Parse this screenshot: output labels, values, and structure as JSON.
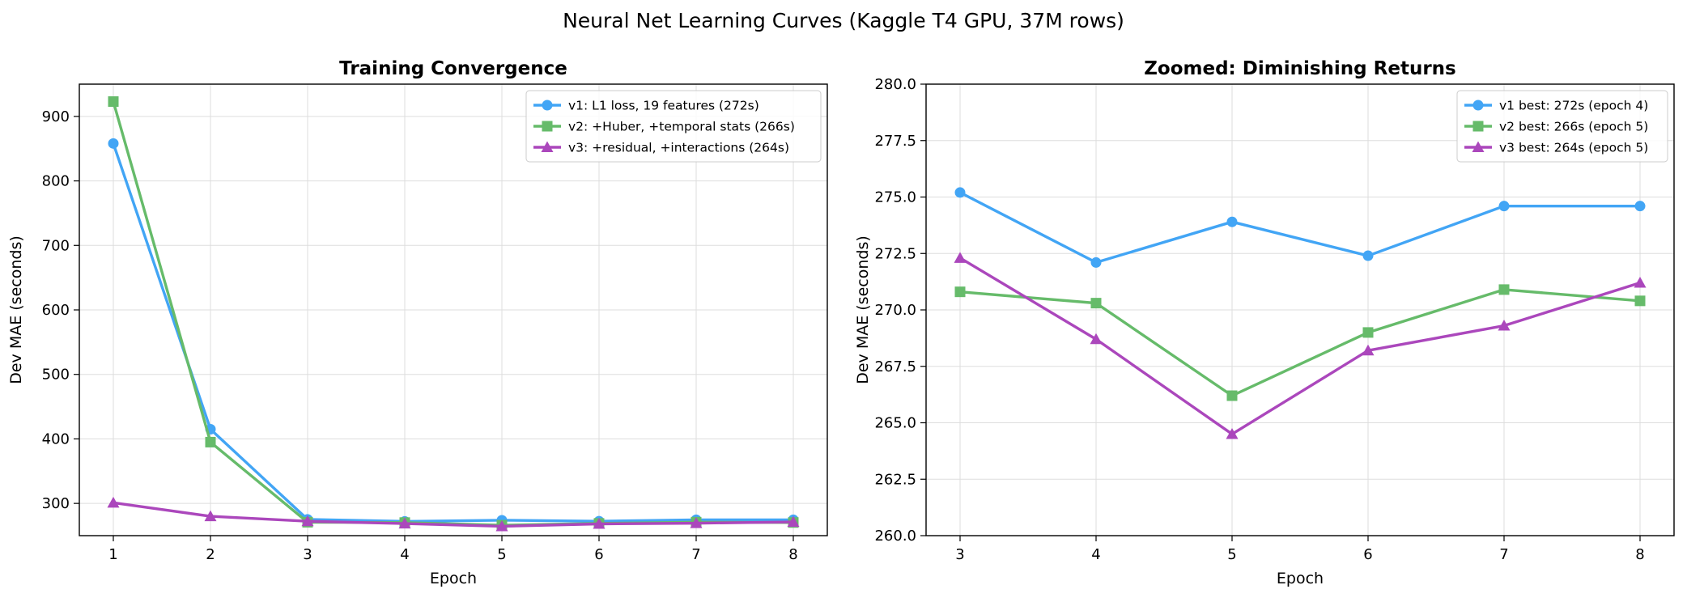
{
  "figure": {
    "suptitle": "Neural Net Learning Curves (Kaggle T4 GPU, 37M rows)"
  },
  "chart_data": [
    {
      "type": "line",
      "title": "Training Convergence",
      "xlabel": "Epoch",
      "ylabel": "Dev MAE (seconds)",
      "x": [
        1,
        2,
        3,
        4,
        5,
        6,
        7,
        8
      ],
      "xlim": [
        0.65,
        8.35
      ],
      "ylim": [
        250,
        950
      ],
      "xticks": [
        1,
        2,
        3,
        4,
        5,
        6,
        7,
        8
      ],
      "yticks": [
        300,
        400,
        500,
        600,
        700,
        800,
        900
      ],
      "grid": true,
      "legend_position": "top-right",
      "series": [
        {
          "name": "v1: L1 loss, 19 features (272s)",
          "color": "#42A5F5",
          "marker": "circle",
          "values": [
            858,
            415,
            275.2,
            272.1,
            273.9,
            272.4,
            274.6,
            274.6
          ]
        },
        {
          "name": "v2: +Huber, +temporal stats (266s)",
          "color": "#66BB6A",
          "marker": "square",
          "values": [
            923,
            395,
            270.8,
            270.3,
            266.2,
            269.0,
            270.9,
            270.4
          ]
        },
        {
          "name": "v3: +residual, +interactions (264s)",
          "color": "#AB47BC",
          "marker": "triangle",
          "values": [
            301,
            280,
            272.3,
            268.7,
            264.5,
            268.2,
            269.3,
            271.2
          ]
        }
      ]
    },
    {
      "type": "line",
      "title": "Zoomed: Diminishing Returns",
      "xlabel": "Epoch",
      "ylabel": "Dev MAE (seconds)",
      "x": [
        3,
        4,
        5,
        6,
        7,
        8
      ],
      "xlim": [
        2.75,
        8.25
      ],
      "ylim": [
        260,
        280
      ],
      "xticks": [
        3,
        4,
        5,
        6,
        7,
        8
      ],
      "yticks": [
        260.0,
        262.5,
        265.0,
        267.5,
        270.0,
        272.5,
        275.0,
        277.5,
        280.0
      ],
      "ytick_decimals": 1,
      "grid": true,
      "legend_position": "top-right",
      "series": [
        {
          "name": "v1 best: 272s (epoch 4)",
          "color": "#42A5F5",
          "marker": "circle",
          "values": [
            275.2,
            272.1,
            273.9,
            272.4,
            274.6,
            274.6
          ]
        },
        {
          "name": "v2 best: 266s (epoch 5)",
          "color": "#66BB6A",
          "marker": "square",
          "values": [
            270.8,
            270.3,
            266.2,
            269.0,
            270.9,
            270.4
          ]
        },
        {
          "name": "v3 best: 264s (epoch 5)",
          "color": "#AB47BC",
          "marker": "triangle",
          "values": [
            272.3,
            268.7,
            264.5,
            268.2,
            269.3,
            271.2
          ]
        }
      ]
    }
  ]
}
